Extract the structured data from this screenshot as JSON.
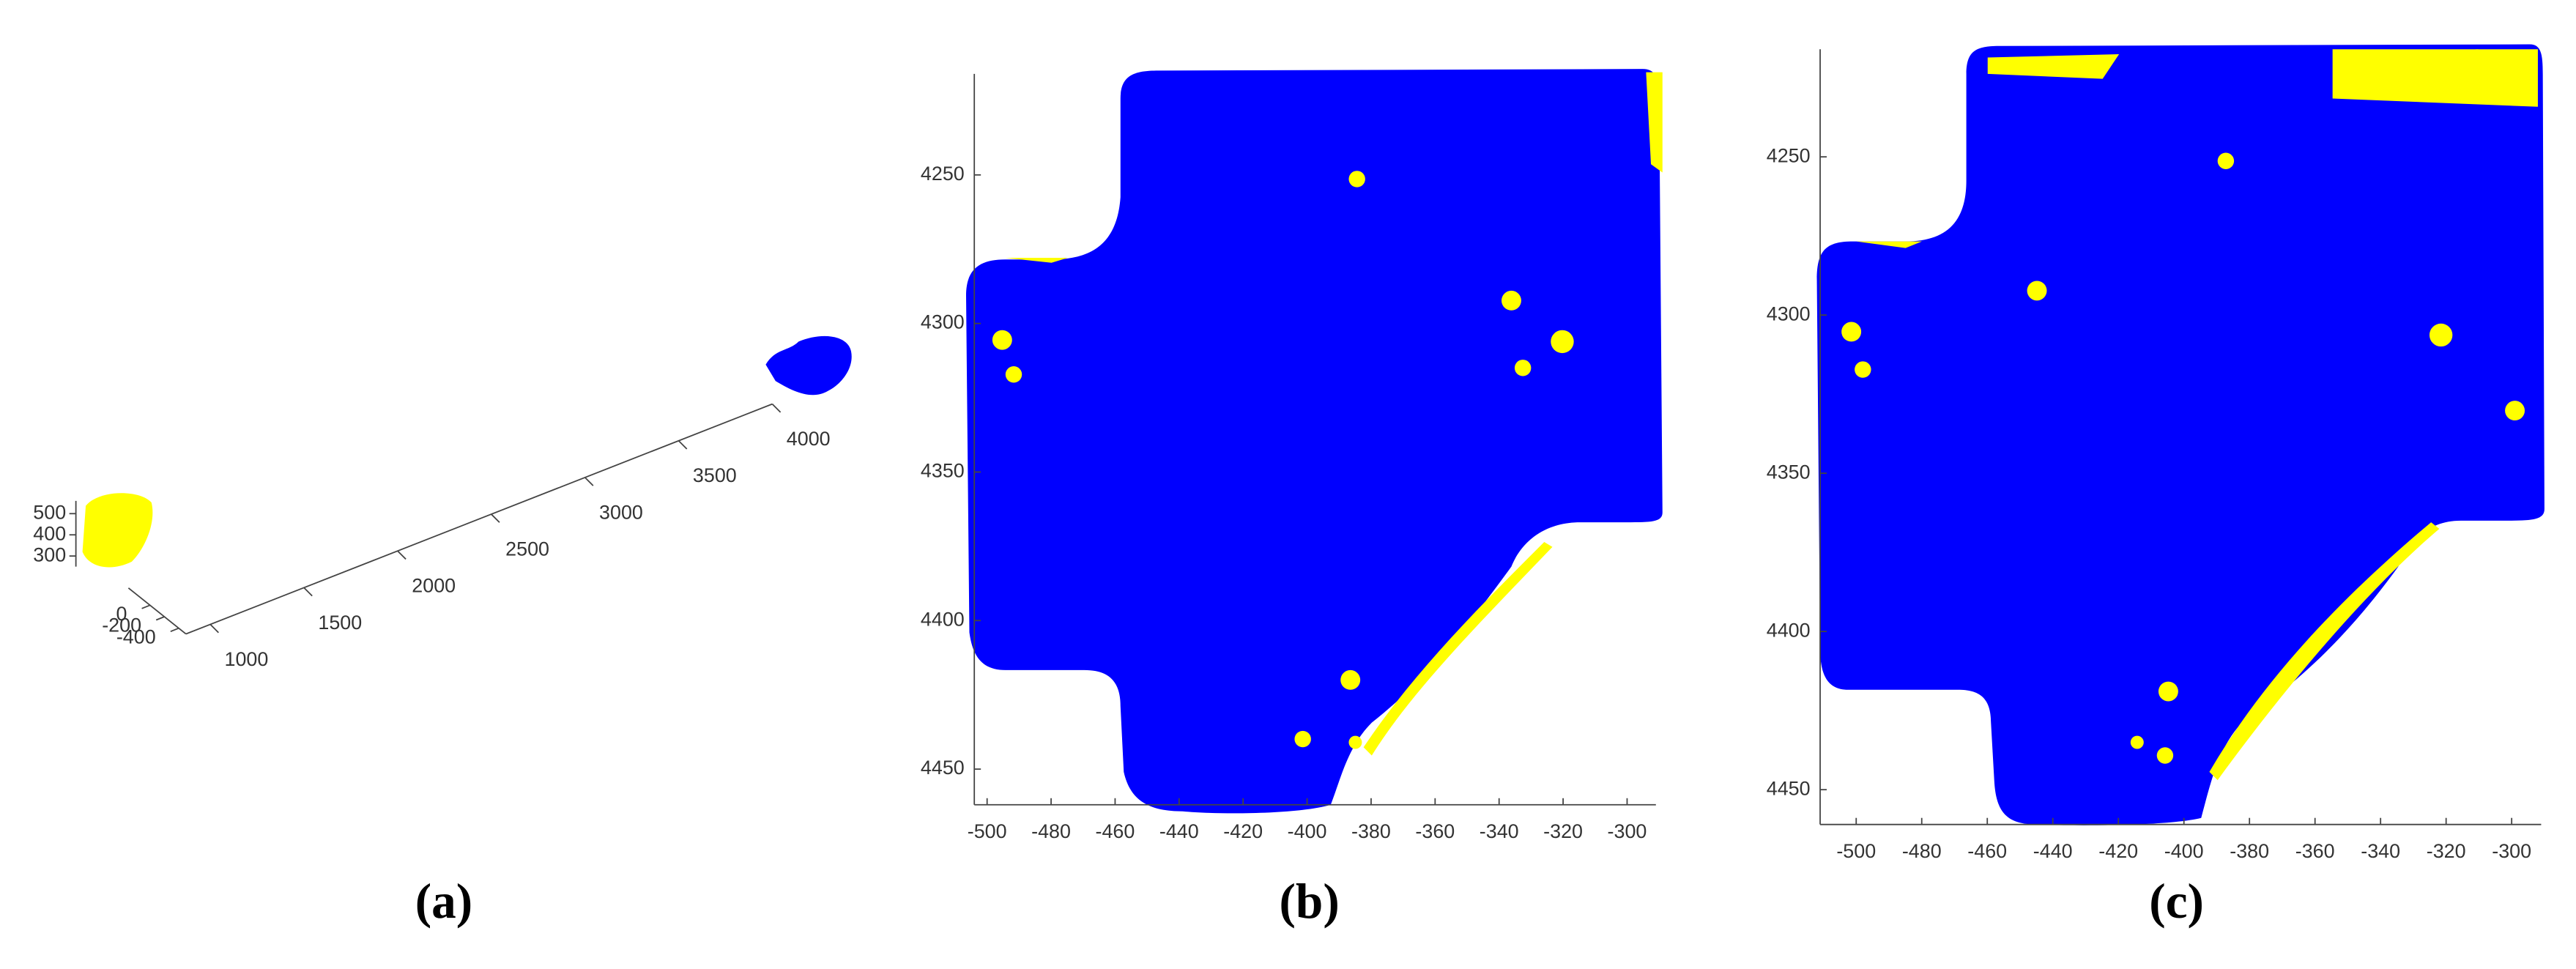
{
  "chart_data": [
    {
      "type": "scatter3d",
      "label": "(a)",
      "xlim": [
        870,
        4000
      ],
      "xticks": [
        1000,
        1500,
        2000,
        2500,
        3000,
        3500,
        4000
      ],
      "ylim": [
        300,
        -500
      ],
      "yticks": [
        0,
        -200,
        -400
      ],
      "zlim": [
        250,
        560
      ],
      "zticks": [
        500,
        400,
        300
      ],
      "colors": [
        "#0000ff",
        "#ffff00"
      ]
    },
    {
      "type": "scatter",
      "label": "(b)",
      "xlim": [
        -504,
        -291
      ],
      "xticks": [
        -500,
        -480,
        -460,
        -440,
        -420,
        -400,
        -380,
        -360,
        -340,
        -320,
        -300
      ],
      "ylim": [
        4216,
        4462
      ],
      "yticks": [
        4250,
        4300,
        4350,
        4400,
        4450
      ],
      "y_reversed": true,
      "colors": [
        "#0000ff",
        "#ffff00"
      ]
    },
    {
      "type": "scatter",
      "label": "(c)",
      "xlim": [
        -511,
        -291
      ],
      "xticks": [
        -500,
        -480,
        -460,
        -440,
        -420,
        -400,
        -380,
        -360,
        -340,
        -320,
        -300
      ],
      "ylim": [
        4216,
        4461
      ],
      "yticks": [
        4250,
        4300,
        4350,
        4400,
        4450
      ],
      "y_reversed": true,
      "colors": [
        "#0000ff",
        "#ffff00"
      ]
    }
  ]
}
